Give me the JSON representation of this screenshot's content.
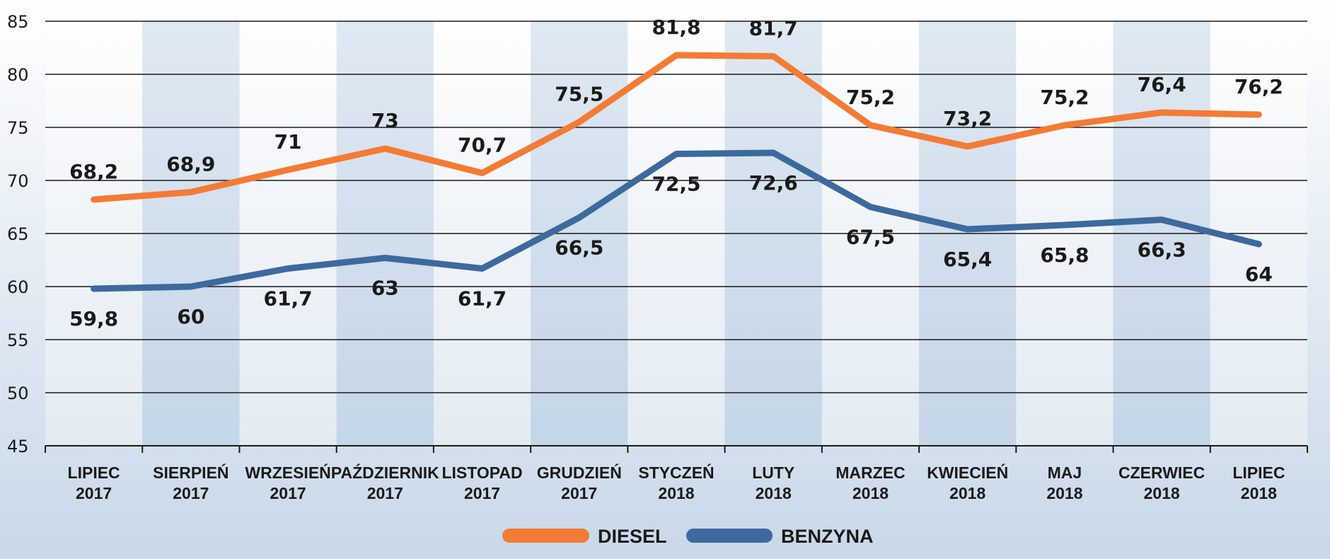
{
  "chart_data": {
    "type": "line",
    "categories": [
      [
        "LIPIEC",
        "2017"
      ],
      [
        "SIERPIEŃ",
        "2017"
      ],
      [
        "WRZESIEŃ",
        "2017"
      ],
      [
        "PAŹDZIERNIK",
        "2017"
      ],
      [
        "LISTOPAD",
        "2017"
      ],
      [
        "GRUDZIEŃ",
        "2017"
      ],
      [
        "STYCZEŃ",
        "2018"
      ],
      [
        "LUTY",
        "2018"
      ],
      [
        "MARZEC",
        "2018"
      ],
      [
        "KWIECIEŃ",
        "2018"
      ],
      [
        "MAJ",
        "2018"
      ],
      [
        "CZERWIEC",
        "2018"
      ],
      [
        "LIPIEC",
        "2018"
      ]
    ],
    "series": [
      {
        "name": "DIESEL",
        "color": "#f47b35",
        "values": [
          68.2,
          68.9,
          71,
          73,
          70.7,
          75.5,
          81.8,
          81.7,
          75.2,
          73.2,
          75.2,
          76.4,
          76.2
        ],
        "labels": [
          "68,2",
          "68,9",
          "71",
          "73",
          "70,7",
          "75,5",
          "81,8",
          "81,7",
          "75,2",
          "73,2",
          "75,2",
          "76,4",
          "76,2"
        ],
        "label_position": "above"
      },
      {
        "name": "BENZYNA",
        "color": "#3d6a9e",
        "values": [
          59.8,
          60,
          61.7,
          62.7,
          61.7,
          66.5,
          72.5,
          72.6,
          67.5,
          65.4,
          65.8,
          66.3,
          64
        ],
        "labels": [
          "59,8",
          "60",
          "61,7",
          "63",
          "61,7",
          "66,5",
          "72,5",
          "72,6",
          "67,5",
          "65,4",
          "65,8",
          "66,3",
          "64"
        ],
        "label_position": "below"
      }
    ],
    "ylim": [
      45,
      85
    ],
    "yticks": [
      45,
      50,
      55,
      60,
      65,
      70,
      75,
      80,
      85
    ],
    "grid": true,
    "legend": "bottom-center"
  }
}
